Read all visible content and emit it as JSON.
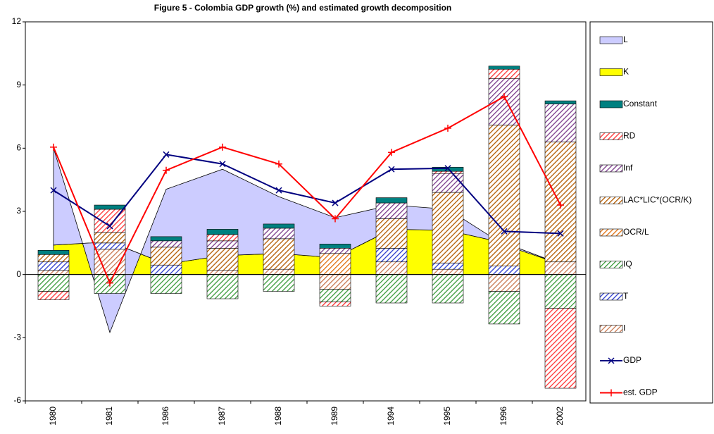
{
  "chart_data": {
    "type": "bar",
    "title": "Figure 5 - Colombia GDP growth (%) and estimated growth decomposition",
    "categories": [
      "1980",
      "1981",
      "1986",
      "1987",
      "1988",
      "1989",
      "1994",
      "1995",
      "1996",
      "2002"
    ],
    "ylim": [
      -6,
      12
    ],
    "yticks": [
      -6,
      -3,
      0,
      3,
      6,
      9,
      12
    ],
    "grid": false,
    "legend": "right",
    "series": [
      {
        "name": "L",
        "type": "area",
        "color": "#ccccff",
        "values": [
          4.6,
          -4.3,
          3.55,
          4.1,
          2.7,
          1.9,
          1.15,
          1.0,
          -0.1,
          0.0
        ]
      },
      {
        "name": "K",
        "type": "area",
        "color": "#ffff00",
        "values": [
          1.4,
          1.55,
          0.5,
          0.9,
          1.0,
          0.8,
          2.15,
          2.1,
          1.5,
          0.5
        ]
      },
      {
        "name": "Constant",
        "type": "bar",
        "color": "#008080",
        "values": [
          0.2,
          0.2,
          0.2,
          0.25,
          0.2,
          0.2,
          0.25,
          0.2,
          0.15,
          0.15
        ]
      },
      {
        "name": "RD",
        "type": "bar",
        "color": "#ff3333",
        "hatch": true,
        "values": [
          -0.4,
          1.1,
          0,
          0.3,
          0,
          -0.2,
          0,
          0.1,
          0.45,
          -3.8
        ]
      },
      {
        "name": "Inf",
        "type": "bar",
        "color": "#7a3a8a",
        "hatch": true,
        "values": [
          0,
          0,
          0.3,
          0.35,
          0.5,
          0.25,
          0.75,
          0.9,
          2.2,
          1.8
        ]
      },
      {
        "name": "LAC*LIC*(OCR/K)",
        "type": "bar",
        "color": "#b35a00",
        "hatch": true,
        "values": [
          0.35,
          0.5,
          0.85,
          1.05,
          1.45,
          0,
          1.4,
          3.35,
          6.7,
          5.7
        ]
      },
      {
        "name": "OCR/L",
        "type": "bar",
        "color": "#e07010",
        "hatch": true,
        "values": [
          0,
          0,
          0,
          0,
          0,
          1.0,
          0,
          0,
          0,
          0
        ]
      },
      {
        "name": "IQ",
        "type": "bar",
        "color": "#3a9a3a",
        "hatch": true,
        "values": [
          -0.8,
          -0.9,
          -0.9,
          -1.15,
          -0.8,
          -0.6,
          -1.35,
          -1.35,
          -1.55,
          -1.6
        ]
      },
      {
        "name": "T",
        "type": "bar",
        "color": "#2a3acc",
        "hatch": true,
        "values": [
          0.4,
          0.3,
          0.45,
          0,
          0,
          0,
          0.65,
          0.3,
          0.4,
          0
        ]
      },
      {
        "name": "I",
        "type": "bar",
        "color": "#c87850",
        "hatch": true,
        "values": [
          0.2,
          1.2,
          0,
          0.2,
          0.25,
          -0.7,
          0.6,
          0.25,
          -0.8,
          0.6
        ]
      },
      {
        "name": "GDP",
        "type": "line",
        "marker": "x",
        "color": "#000080",
        "values": [
          4.0,
          2.3,
          5.7,
          5.25,
          4.0,
          3.4,
          5.0,
          5.05,
          2.05,
          1.95
        ]
      },
      {
        "name": "est. GDP",
        "type": "line",
        "marker": "+",
        "color": "#ff0000",
        "values": [
          6.05,
          -0.4,
          4.95,
          6.05,
          5.25,
          2.65,
          5.8,
          6.95,
          8.45,
          3.3
        ]
      }
    ]
  }
}
